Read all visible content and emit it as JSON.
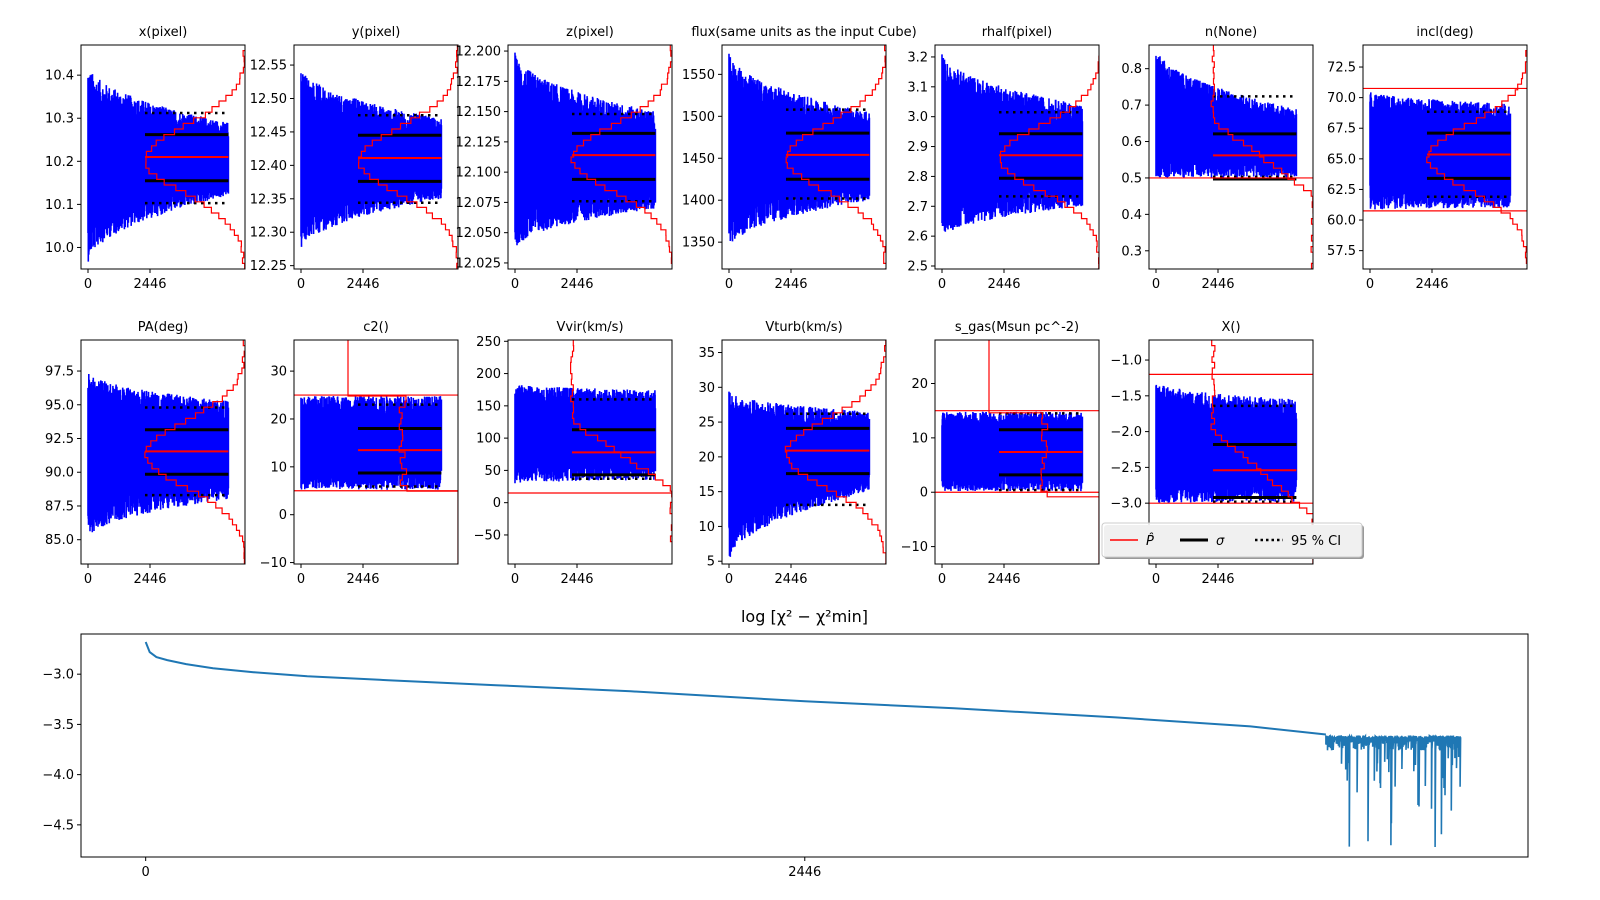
{
  "figure": {
    "description": "MCMC chain traces with posterior histograms and log chi-square convergence"
  },
  "legend": {
    "items": [
      {
        "label": "P̂",
        "style": "red-solid"
      },
      {
        "label": "σ",
        "style": "black-thick"
      },
      {
        "label": "95 % CI",
        "style": "black-dotted"
      }
    ]
  },
  "colors": {
    "trace": "#0000ff",
    "estimate": "#ff0000",
    "sigma": "#000000",
    "ci": "#000000",
    "chi2_line": "#1f77b4"
  },
  "chart_data": [
    {
      "type": "line",
      "title": "x(pixel)",
      "ylim": [
        9.95,
        10.47
      ],
      "yticks": [
        "10.0",
        "10.1",
        "10.2",
        "10.3",
        "10.4"
      ],
      "ytick_values": [
        10.0,
        10.1,
        10.2,
        10.3,
        10.4
      ],
      "xticks": [
        "0",
        "2446"
      ],
      "xtick_values": [
        0,
        2446
      ],
      "xmax": 5800,
      "trace": {
        "start_hi": 10.43,
        "start_lo": 9.96,
        "end_hi": 10.29,
        "end_lo": 10.12
      },
      "estimate": 10.21,
      "sigma": [
        10.155,
        10.262
      ],
      "ci95": [
        10.103,
        10.312
      ],
      "prior_bounds": null,
      "hist": "peak-centered"
    },
    {
      "type": "line",
      "title": "y(pixel)",
      "ylim": [
        12.245,
        12.58
      ],
      "yticks": [
        "12.25",
        "12.30",
        "12.35",
        "12.40",
        "12.45",
        "12.50",
        "12.55"
      ],
      "ytick_values": [
        12.25,
        12.3,
        12.35,
        12.4,
        12.45,
        12.5,
        12.55
      ],
      "xticks": [
        "0",
        "2446"
      ],
      "xtick_values": [
        0,
        2446
      ],
      "xmax": 5800,
      "trace": {
        "start_hi": 12.55,
        "start_lo": 12.27,
        "end_hi": 12.47,
        "end_lo": 12.35
      },
      "estimate": 12.411,
      "sigma": [
        12.376,
        12.445
      ],
      "ci95": [
        12.344,
        12.475
      ],
      "prior_bounds": null,
      "hist": "peak-centered"
    },
    {
      "type": "line",
      "title": "z(pixel)",
      "ylim": [
        12.02,
        12.205
      ],
      "yticks": [
        "12.025",
        "12.050",
        "12.075",
        "12.100",
        "12.125",
        "12.150",
        "12.175",
        "12.200"
      ],
      "ytick_values": [
        12.025,
        12.05,
        12.075,
        12.1,
        12.125,
        12.15,
        12.175,
        12.2
      ],
      "xticks": [
        "0",
        "2446"
      ],
      "xtick_values": [
        0,
        2446
      ],
      "xmax": 5800,
      "trace": {
        "start_hi": 12.2,
        "start_lo": 12.035,
        "end_hi": 12.15,
        "end_lo": 12.07
      },
      "estimate": 12.114,
      "sigma": [
        12.094,
        12.132
      ],
      "ci95": [
        12.076,
        12.148
      ],
      "prior_bounds": null,
      "hist": "peak-centered"
    },
    {
      "type": "line",
      "title": "flux(same units as the input Cube)",
      "ylim": [
        1318,
        1585
      ],
      "yticks": [
        "1350",
        "1400",
        "1450",
        "1500",
        "1550"
      ],
      "ytick_values": [
        1350,
        1400,
        1450,
        1500,
        1550
      ],
      "xticks": [
        "0",
        "2446"
      ],
      "xtick_values": [
        0,
        2446
      ],
      "xmax": 5800,
      "trace": {
        "start_hi": 1578,
        "start_lo": 1340,
        "end_hi": 1505,
        "end_lo": 1400
      },
      "estimate": 1454,
      "sigma": [
        1425,
        1480
      ],
      "ci95": [
        1402,
        1508
      ],
      "prior_bounds": null,
      "hist": "peak-centered"
    },
    {
      "type": "line",
      "title": "rhalf(pixel)",
      "ylim": [
        2.49,
        3.24
      ],
      "yticks": [
        "2.5",
        "2.6",
        "2.7",
        "2.8",
        "2.9",
        "3.0",
        "3.1",
        "3.2"
      ],
      "ytick_values": [
        2.5,
        2.6,
        2.7,
        2.8,
        2.9,
        3.0,
        3.1,
        3.2
      ],
      "xticks": [
        "0",
        "2446"
      ],
      "xtick_values": [
        0,
        2446
      ],
      "xmax": 5800,
      "trace": {
        "start_hi": 3.22,
        "start_lo": 2.59,
        "end_hi": 3.04,
        "end_lo": 2.7
      },
      "estimate": 2.871,
      "sigma": [
        2.794,
        2.943
      ],
      "ci95": [
        2.733,
        3.015
      ],
      "prior_bounds": null,
      "hist": "peak-centered"
    },
    {
      "type": "line",
      "title": "n(None)",
      "ylim": [
        0.25,
        0.865
      ],
      "yticks": [
        "0.3",
        "0.4",
        "0.5",
        "0.6",
        "0.7",
        "0.8"
      ],
      "ytick_values": [
        0.3,
        0.4,
        0.5,
        0.6,
        0.7,
        0.8
      ],
      "xticks": [
        "0",
        "2446"
      ],
      "xtick_values": [
        0,
        2446
      ],
      "xmax": 5800,
      "trace": {
        "start_hi": 0.865,
        "start_lo": 0.5,
        "end_hi": 0.69,
        "end_lo": 0.5
      },
      "estimate": 0.562,
      "sigma": [
        0.497,
        0.621
      ],
      "ci95": [
        0.503,
        0.724
      ],
      "prior_bounds": [
        0.5
      ],
      "hist": "rising"
    },
    {
      "type": "line",
      "title": "incl(deg)",
      "ylim": [
        56,
        74.3
      ],
      "yticks": [
        "57.5",
        "60.0",
        "62.5",
        "65.0",
        "67.5",
        "70.0",
        "72.5"
      ],
      "ytick_values": [
        57.5,
        60.0,
        62.5,
        65.0,
        67.5,
        70.0,
        72.5
      ],
      "xticks": [
        "0",
        "2446"
      ],
      "xtick_values": [
        0,
        2446
      ],
      "xmax": 5800,
      "trace": {
        "start_hi": 70.6,
        "start_lo": 60.8,
        "end_hi": 69.5,
        "end_lo": 61.0
      },
      "estimate": 65.35,
      "sigma": [
        63.4,
        67.1
      ],
      "ci95": [
        61.9,
        68.85
      ],
      "prior_bounds": [
        60.75,
        70.75
      ],
      "hist": "peak-centered"
    },
    {
      "type": "line",
      "title": "PA(deg)",
      "ylim": [
        83.2,
        99.8
      ],
      "yticks": [
        "85.0",
        "87.5",
        "90.0",
        "92.5",
        "95.0",
        "97.5"
      ],
      "ytick_values": [
        85.0,
        87.5,
        90.0,
        92.5,
        95.0,
        97.5
      ],
      "xticks": [
        "0",
        "2446"
      ],
      "xtick_values": [
        0,
        2446
      ],
      "xmax": 5800,
      "trace": {
        "start_hi": 97.5,
        "start_lo": 85.0,
        "end_hi": 95.3,
        "end_lo": 88.0
      },
      "estimate": 91.55,
      "sigma": [
        89.85,
        93.15
      ],
      "ci95": [
        88.3,
        94.8
      ],
      "prior_bounds": null,
      "hist": "peak-centered"
    },
    {
      "type": "line",
      "title": "c2()",
      "ylim": [
        -10.3,
        36.5
      ],
      "yticks": [
        "−10",
        "0",
        "10",
        "20",
        "30"
      ],
      "ytick_values": [
        -10,
        0,
        10,
        20,
        30
      ],
      "xticks": [
        "0",
        "2446"
      ],
      "xtick_values": [
        0,
        2446
      ],
      "xmax": 5800,
      "trace": {
        "start_hi": 24.8,
        "start_lo": 5.2,
        "end_hi": 24.8,
        "end_lo": 5.2
      },
      "estimate": 13.5,
      "sigma": [
        8.7,
        18.0
      ],
      "ci95": [
        5.9,
        23.0
      ],
      "prior_bounds": [
        5.0,
        25.0
      ],
      "hist": "flat"
    },
    {
      "type": "line",
      "title": "Vvir(km/s)",
      "ylim": [
        -95,
        252
      ],
      "yticks": [
        "−50",
        "0",
        "50",
        "100",
        "150",
        "200",
        "250"
      ],
      "ytick_values": [
        -50,
        0,
        50,
        100,
        150,
        200,
        250
      ],
      "xticks": [
        "0",
        "2446"
      ],
      "xtick_values": [
        0,
        2446
      ],
      "xmax": 5800,
      "trace": {
        "start_hi": 185,
        "start_lo": 30,
        "end_hi": 175,
        "end_lo": 35
      },
      "estimate": 78,
      "sigma": [
        43,
        113
      ],
      "ci95": [
        37,
        160
      ],
      "prior_bounds": [
        15
      ],
      "hist": "skewed-low"
    },
    {
      "type": "line",
      "title": "Vturb(km/s)",
      "ylim": [
        4.6,
        36.8
      ],
      "yticks": [
        "5",
        "10",
        "15",
        "20",
        "25",
        "30",
        "35"
      ],
      "ytick_values": [
        5,
        10,
        15,
        20,
        25,
        30,
        35
      ],
      "xticks": [
        "0",
        "2446"
      ],
      "xtick_values": [
        0,
        2446
      ],
      "xmax": 5800,
      "trace": {
        "start_hi": 29.5,
        "start_lo": 4.6,
        "end_hi": 26.5,
        "end_lo": 15.0
      },
      "estimate": 20.9,
      "sigma": [
        17.6,
        24.1
      ],
      "ci95": [
        13.1,
        26.2
      ],
      "prior_bounds": null,
      "hist": "peak-centered"
    },
    {
      "type": "line",
      "title": "s_gas(Msun pc^-2)",
      "ylim": [
        -13.2,
        28
      ],
      "yticks": [
        "−10",
        "0",
        "10",
        "20"
      ],
      "ytick_values": [
        -10,
        0,
        10,
        20
      ],
      "xticks": [
        "0",
        "2446"
      ],
      "xtick_values": [
        0,
        2446
      ],
      "xmax": 5800,
      "trace": {
        "start_hi": 14.8,
        "start_lo": 0.2,
        "end_hi": 14.8,
        "end_lo": 0.2
      },
      "estimate": 7.4,
      "sigma": [
        3.2,
        11.5
      ],
      "ci95": [
        0.4,
        14.5
      ],
      "prior_bounds": [
        0.0,
        15.0
      ],
      "hist": "flat"
    },
    {
      "type": "line",
      "title": "X()",
      "ylim": [
        -3.85,
        -0.72
      ],
      "yticks": [
        "−3.5",
        "−3.0",
        "−2.5",
        "−2.0",
        "−1.5",
        "−1.0"
      ],
      "ytick_values": [
        -3.5,
        -3.0,
        -2.5,
        -2.0,
        -1.5,
        -1.0
      ],
      "xticks": [
        "0",
        "2446"
      ],
      "xtick_values": [
        0,
        2446
      ],
      "xmax": 5800,
      "trace": {
        "start_hi": -1.3,
        "start_lo": -3.0,
        "end_hi": -1.55,
        "end_lo": -2.98
      },
      "estimate": -2.54,
      "sigma": [
        -2.92,
        -2.18
      ],
      "ci95": [
        -2.98,
        -1.64
      ],
      "prior_bounds": [
        -3.0,
        -1.2
      ],
      "hist": "rising"
    },
    {
      "type": "line",
      "title": "log  [χ² − χ²min]",
      "ylim": [
        -4.82,
        -2.6
      ],
      "yticks": [
        "−4.5",
        "−4.0",
        "−3.5",
        "−3.0"
      ],
      "ytick_values": [
        -4.5,
        -4.0,
        -3.5,
        -3.0
      ],
      "xticks": [
        "0",
        "2446"
      ],
      "xtick_values": [
        0,
        2446
      ],
      "xlim": [
        -240,
        5130
      ],
      "series": [
        {
          "name": "log chi2 descent",
          "x": [
            0,
            15,
            40,
            80,
            150,
            250,
            400,
            600,
            900,
            1300,
            1800,
            2446,
            3000,
            3600,
            4100,
            4380
          ],
          "y": [
            -2.68,
            -2.78,
            -2.83,
            -2.86,
            -2.9,
            -2.94,
            -2.98,
            -3.02,
            -3.06,
            -3.11,
            -3.17,
            -3.27,
            -3.34,
            -3.43,
            -3.52,
            -3.6
          ]
        },
        {
          "name": "log chi2 noisy tail",
          "x_range": [
            4380,
            4880
          ],
          "y_top": -3.61,
          "y_deep_min": -4.72
        }
      ]
    }
  ]
}
